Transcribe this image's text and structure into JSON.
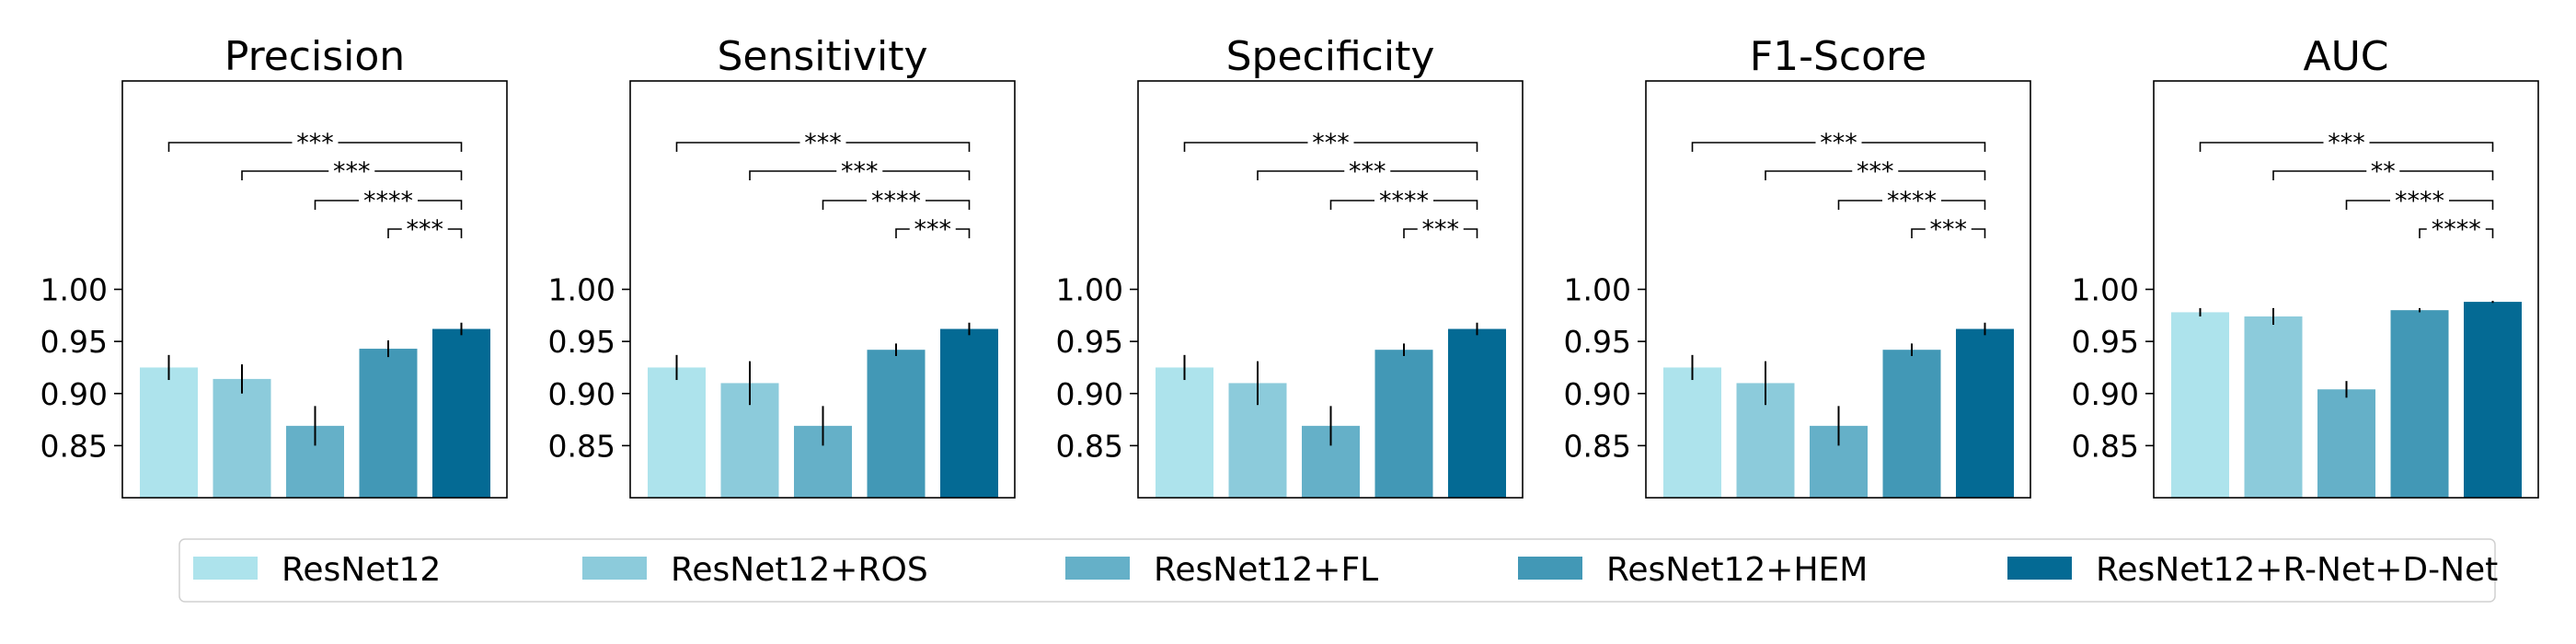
{
  "chart_data": {
    "type": "bar",
    "series_names": [
      "ResNet12",
      "ResNet12+ROS",
      "ResNet12+FL",
      "ResNet12+HEM",
      "ResNet12+R-Net+D-Net"
    ],
    "colors": [
      "#ade3ec",
      "#8ccbdb",
      "#65b0c8",
      "#4298b6",
      "#046a94"
    ],
    "ylim": [
      0.8,
      1.2
    ],
    "yticks": [
      0.85,
      0.9,
      0.95,
      1.0
    ],
    "ytick_labels": [
      "0.85",
      "0.90",
      "0.95",
      "1.00"
    ],
    "panels": [
      {
        "title": "Precision",
        "values": [
          0.925,
          0.914,
          0.869,
          0.943,
          0.962
        ],
        "errors": [
          0.012,
          0.014,
          0.019,
          0.008,
          0.006
        ],
        "significance": [
          {
            "from": 0,
            "to": 4,
            "label": "***"
          },
          {
            "from": 1,
            "to": 4,
            "label": "***"
          },
          {
            "from": 2,
            "to": 4,
            "label": "****"
          },
          {
            "from": 3,
            "to": 4,
            "label": "***"
          }
        ]
      },
      {
        "title": "Sensitivity",
        "values": [
          0.925,
          0.91,
          0.869,
          0.942,
          0.962
        ],
        "errors": [
          0.012,
          0.021,
          0.019,
          0.006,
          0.006
        ],
        "significance": [
          {
            "from": 0,
            "to": 4,
            "label": "***"
          },
          {
            "from": 1,
            "to": 4,
            "label": "***"
          },
          {
            "from": 2,
            "to": 4,
            "label": "****"
          },
          {
            "from": 3,
            "to": 4,
            "label": "***"
          }
        ]
      },
      {
        "title": "Specificity",
        "values": [
          0.925,
          0.91,
          0.869,
          0.942,
          0.962
        ],
        "errors": [
          0.012,
          0.021,
          0.019,
          0.006,
          0.006
        ],
        "significance": [
          {
            "from": 0,
            "to": 4,
            "label": "***"
          },
          {
            "from": 1,
            "to": 4,
            "label": "***"
          },
          {
            "from": 2,
            "to": 4,
            "label": "****"
          },
          {
            "from": 3,
            "to": 4,
            "label": "***"
          }
        ]
      },
      {
        "title": "F1-Score",
        "values": [
          0.925,
          0.91,
          0.869,
          0.942,
          0.962
        ],
        "errors": [
          0.012,
          0.021,
          0.019,
          0.006,
          0.006
        ],
        "significance": [
          {
            "from": 0,
            "to": 4,
            "label": "***"
          },
          {
            "from": 1,
            "to": 4,
            "label": "***"
          },
          {
            "from": 2,
            "to": 4,
            "label": "****"
          },
          {
            "from": 3,
            "to": 4,
            "label": "***"
          }
        ]
      },
      {
        "title": "AUC",
        "values": [
          0.978,
          0.974,
          0.904,
          0.98,
          0.988
        ],
        "errors": [
          0.004,
          0.008,
          0.008,
          0.002,
          0.001
        ],
        "significance": [
          {
            "from": 0,
            "to": 4,
            "label": "***"
          },
          {
            "from": 1,
            "to": 4,
            "label": "**"
          },
          {
            "from": 2,
            "to": 4,
            "label": "****"
          },
          {
            "from": 3,
            "to": 4,
            "label": "****"
          }
        ]
      }
    ]
  }
}
